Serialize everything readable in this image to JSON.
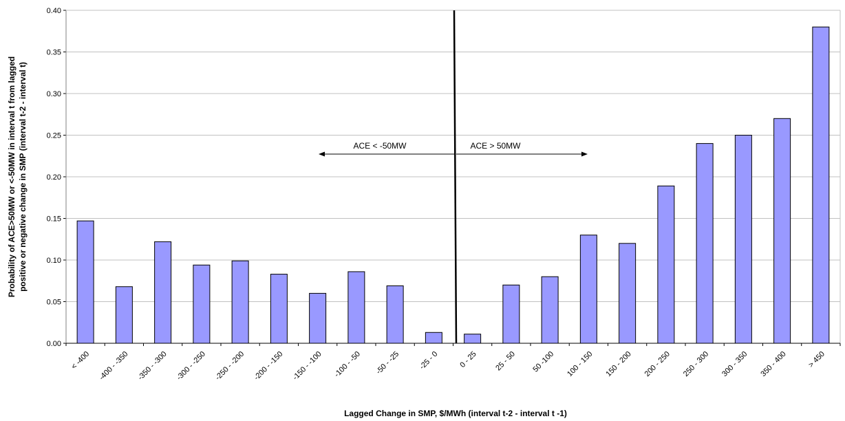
{
  "chart_data": {
    "type": "bar",
    "title": "",
    "xlabel": "Lagged Change in SMP, $/MWh (interval t-2 - interval t -1)",
    "ylabel_lines": [
      "Probability of ACE>50MW or <-50MW in interval t from lagged",
      "positive or negative change in SMP (interval t-2 - interval t)"
    ],
    "categories": [
      "< -400",
      "-400 - -350",
      "-350 - -300",
      "-300 - -250",
      "-250 - -200",
      "-200 - -150",
      "-150 - -100",
      "-100 - -50",
      "-50 - -25",
      "-25 - 0",
      "0 - 25",
      "25 - 50",
      "50 -100",
      "100 - 150",
      "150 - 200",
      "200 - 250",
      "250 - 300",
      "300 - 350",
      "350 - 400",
      "> 450"
    ],
    "values": [
      0.147,
      0.068,
      0.122,
      0.094,
      0.099,
      0.083,
      0.06,
      0.086,
      0.069,
      0.013,
      0.011,
      0.07,
      0.08,
      0.13,
      0.12,
      0.189,
      0.24,
      0.25,
      0.27,
      0.38
    ],
    "ylim": [
      0,
      0.4
    ],
    "yticks": [
      "0.00",
      "0.05",
      "0.10",
      "0.15",
      "0.20",
      "0.25",
      "0.30",
      "0.35",
      "0.40"
    ],
    "grid": true,
    "bar_color": "#9999ff",
    "annotations": {
      "left_label": "ACE < -50MW",
      "right_label": "ACE > 50MW"
    }
  }
}
